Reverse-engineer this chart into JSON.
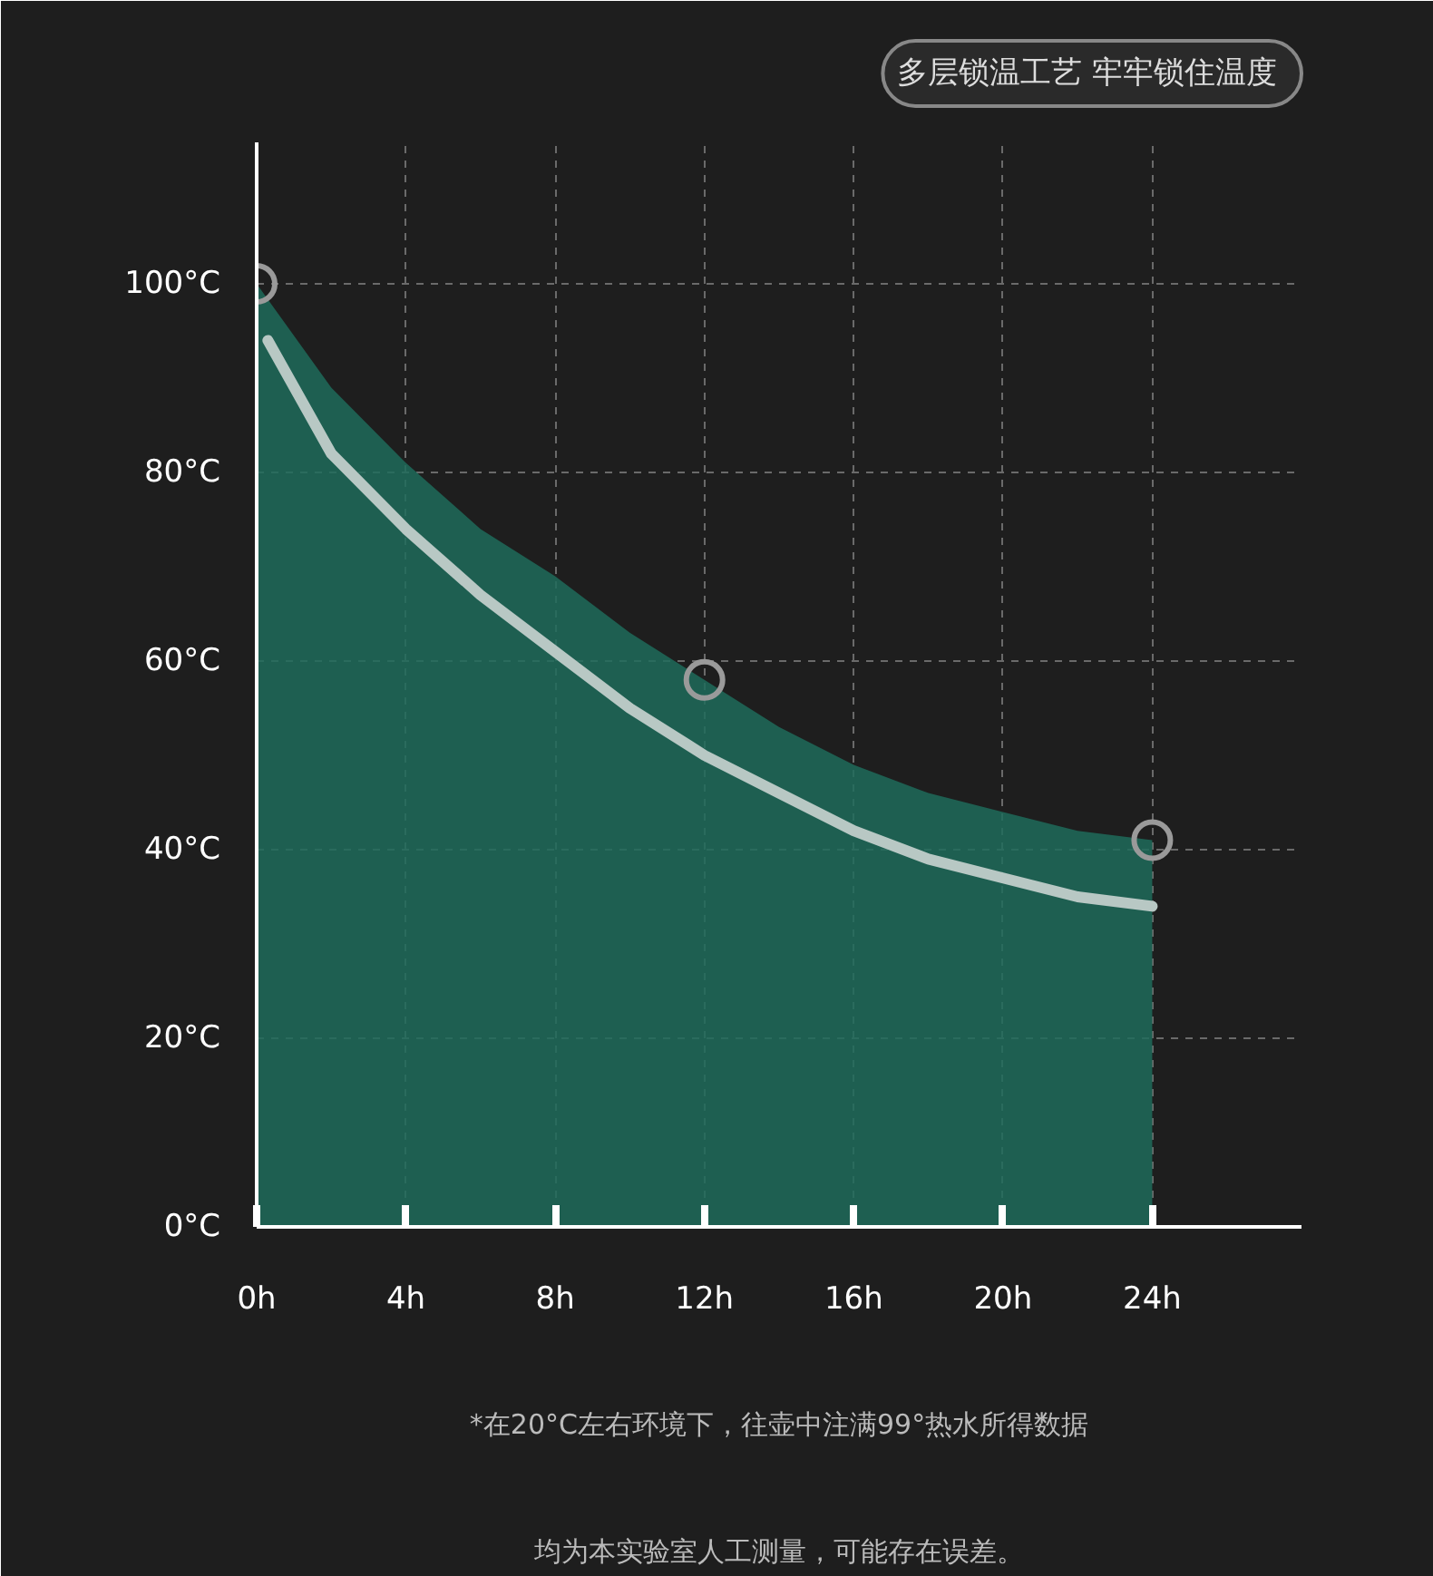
{
  "chart_data": {
    "type": "area",
    "title": "多层锁温工艺  牢牢锁住温度",
    "annotations": [
      "*在20°C左右环境下，往壶中注满99°热水所得数据",
      "均为本实验室人工测量，可能存在误差。"
    ],
    "series": [
      {
        "color": "#1f6b5a",
        "x": [
          0,
          2,
          4,
          6,
          8,
          10,
          12,
          14,
          16,
          18,
          20,
          22,
          24
        ],
        "values": [
          100,
          89,
          81,
          74,
          69,
          63,
          58,
          53,
          49,
          46,
          44,
          42,
          41
        ]
      },
      {
        "type": "line",
        "color": "#b8c8c4",
        "x": [
          0.3,
          2,
          4,
          6,
          8,
          10,
          12,
          14,
          16,
          18,
          20,
          22,
          24
        ],
        "values": [
          94,
          82,
          74,
          67,
          61,
          55,
          50,
          46,
          42,
          39,
          37,
          35,
          34
        ]
      },
      {
        "type": "scatter",
        "color": "#9a9a9a",
        "marker": "circle",
        "x": [
          0,
          12,
          24
        ],
        "values": [
          100,
          58,
          41
        ]
      }
    ],
    "xlim": [
      0,
      28
    ],
    "ylim": [
      0,
      115
    ],
    "xticks": [
      {
        "value": 0,
        "label": "0h"
      },
      {
        "value": 4,
        "label": "4h"
      },
      {
        "value": 8,
        "label": "8h"
      },
      {
        "value": 12,
        "label": "12h"
      },
      {
        "value": 16,
        "label": "16h"
      },
      {
        "value": 20,
        "label": "20h"
      },
      {
        "value": 24,
        "label": "24h"
      }
    ],
    "yticks": [
      {
        "value": 0,
        "label": "0°C"
      },
      {
        "value": 20,
        "label": "20°C"
      },
      {
        "value": 40,
        "label": "40°C"
      },
      {
        "value": 60,
        "label": "60°C"
      },
      {
        "value": 80,
        "label": "80°C"
      },
      {
        "value": 100,
        "label": "100°C"
      }
    ],
    "grid": true
  }
}
